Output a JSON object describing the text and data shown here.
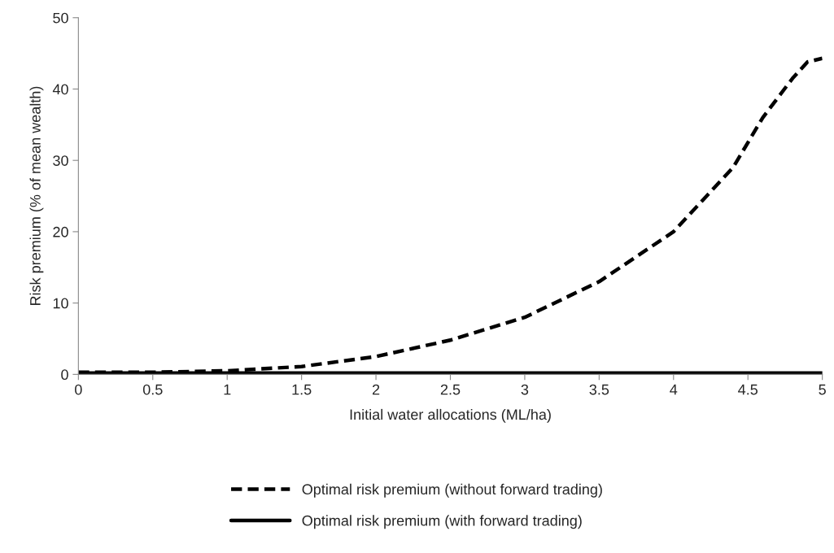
{
  "chart_data": {
    "type": "line",
    "xlabel": "Initial water allocations (ML/ha)",
    "ylabel": "Risk premium (% of mean wealth)",
    "xlim": [
      0,
      5
    ],
    "xticks": [
      0,
      0.5,
      1,
      1.5,
      2,
      2.5,
      3,
      3.5,
      4,
      4.5,
      5
    ],
    "ylim": [
      0,
      50
    ],
    "yticks": [
      0,
      10,
      20,
      30,
      40,
      50
    ],
    "grid": false,
    "legend": "bottom",
    "marker": "none",
    "series": [
      {
        "name": "Optimal risk premium (without forward trading)",
        "color": "#000000",
        "line_style": "dashed",
        "x": [
          0,
          0.5,
          1,
          1.5,
          2,
          2.5,
          3,
          3.5,
          4,
          4.2,
          4.4,
          4.6,
          4.8,
          4.9,
          5
        ],
        "values": [
          0.3,
          0.3,
          0.5,
          1.1,
          2.5,
          4.8,
          8,
          13,
          20,
          24.5,
          29,
          36,
          41.5,
          43.8,
          44.3
        ]
      },
      {
        "name": "Optimal risk premium (with forward trading)",
        "color": "#000000",
        "line_style": "solid",
        "x": [
          0,
          5
        ],
        "values": [
          0.2,
          0.2
        ]
      }
    ]
  }
}
